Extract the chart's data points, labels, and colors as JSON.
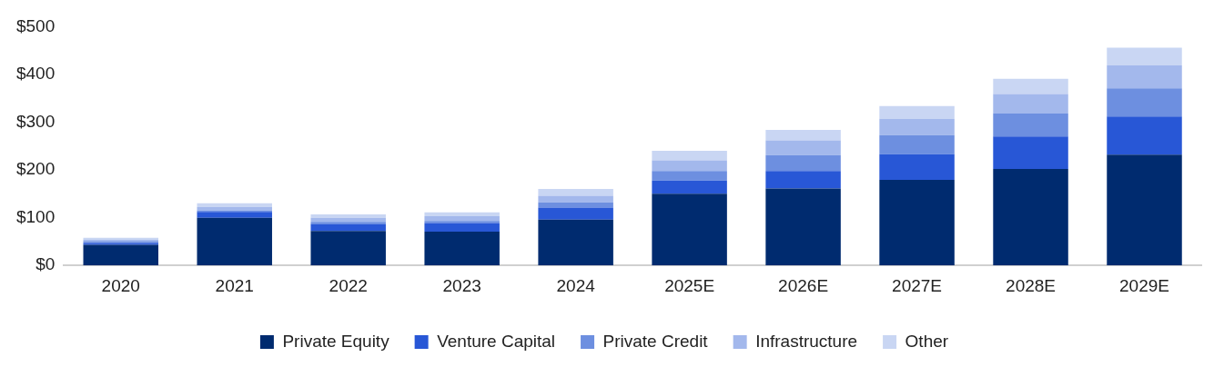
{
  "chart_data": {
    "type": "bar",
    "stacked": true,
    "categories": [
      "2020",
      "2021",
      "2022",
      "2023",
      "2024",
      "2025E",
      "2026E",
      "2027E",
      "2028E",
      "2029E"
    ],
    "series": [
      {
        "name": "Private Equity",
        "color": "#002b6f",
        "values": [
          43,
          100,
          72,
          71,
          96,
          150,
          161,
          179,
          202,
          232
        ]
      },
      {
        "name": "Venture Capital",
        "color": "#2857d6",
        "values": [
          4,
          12,
          15,
          18,
          25,
          28,
          37,
          54,
          68,
          80
        ]
      },
      {
        "name": "Private Credit",
        "color": "#6d8fe0",
        "values": [
          4,
          3,
          4,
          4,
          11,
          20,
          33,
          40,
          48,
          59
        ]
      },
      {
        "name": "Infrastructure",
        "color": "#a3b8ec",
        "values": [
          3,
          7,
          9,
          10,
          14,
          22,
          31,
          34,
          41,
          48
        ]
      },
      {
        "name": "Other",
        "color": "#c9d6f3",
        "values": [
          4,
          8,
          7,
          8,
          14,
          20,
          22,
          27,
          32,
          37
        ]
      }
    ],
    "ylim": [
      0,
      500
    ],
    "yticks": [
      {
        "value": 0,
        "label": "$0"
      },
      {
        "value": 100,
        "label": "$100"
      },
      {
        "value": 200,
        "label": "$200"
      },
      {
        "value": 300,
        "label": "$300"
      },
      {
        "value": 400,
        "label": "$400"
      },
      {
        "value": 500,
        "label": "$500"
      }
    ],
    "grid": false,
    "legend": "bottom"
  }
}
